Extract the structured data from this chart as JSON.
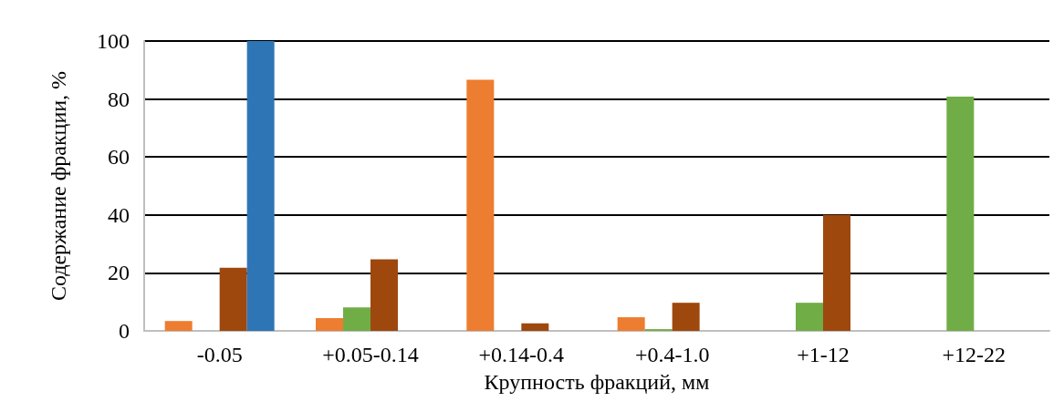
{
  "chart_data": {
    "type": "bar",
    "xlabel": "Крупность фракций, мм",
    "ylabel": "Содержание фракции, %",
    "categories": [
      "-0.05",
      "+0.05-0.14",
      "+0.14-0.4",
      "+0.4-1.0",
      "+1-12",
      "+12-22"
    ],
    "series": [
      {
        "color": "#ed7d31",
        "values": [
          3.4,
          4.4,
          86.6,
          4.7,
          null,
          null
        ]
      },
      {
        "color": "#70ad47",
        "values": [
          null,
          8.1,
          null,
          0.6,
          9.7,
          80.8
        ]
      },
      {
        "color": "#9e480e",
        "values": [
          21.8,
          24.7,
          2.6,
          9.7,
          40,
          null
        ]
      },
      {
        "color": "#2e75b6",
        "values": [
          100,
          null,
          null,
          null,
          null,
          null
        ]
      }
    ],
    "ylim": [
      0,
      100
    ],
    "yticks": [
      0,
      20,
      40,
      60,
      80,
      100
    ],
    "grid": true
  }
}
